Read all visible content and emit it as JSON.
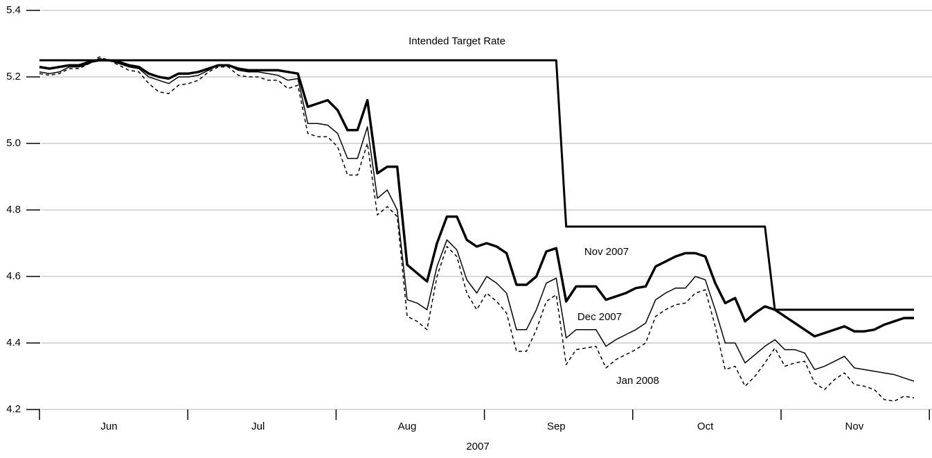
{
  "chart_data": {
    "type": "line",
    "x_label": "2007",
    "categories": [
      null,
      null,
      null,
      null,
      null,
      null,
      null,
      "Jun",
      null,
      null,
      null,
      null,
      null,
      null,
      null,
      null,
      null,
      null,
      null,
      null,
      null,
      null,
      "Jul",
      null,
      null,
      null,
      null,
      null,
      null,
      null,
      null,
      null,
      null,
      null,
      null,
      null,
      null,
      "Aug",
      null,
      null,
      null,
      null,
      null,
      null,
      null,
      null,
      null,
      null,
      null,
      null,
      null,
      null,
      "Sep",
      null,
      null,
      null,
      null,
      null,
      null,
      null,
      null,
      null,
      null,
      null,
      null,
      null,
      null,
      "Oct",
      null,
      null,
      null,
      null,
      null,
      null,
      null,
      null,
      null,
      null,
      null,
      null,
      null,
      null,
      "Nov",
      null,
      null,
      null,
      null,
      null,
      null
    ],
    "ylim": [
      4.2,
      5.4
    ],
    "yticks": [
      {
        "value": 4.2,
        "label": "4.2"
      },
      {
        "value": 4.4,
        "label": "4.4"
      },
      {
        "value": 4.6,
        "label": "4.6"
      },
      {
        "value": 4.8,
        "label": "4.8"
      },
      {
        "value": 5.0,
        "label": "5.0"
      },
      {
        "value": 5.2,
        "label": "5.2"
      },
      {
        "value": 5.4,
        "label": "5.4"
      }
    ],
    "grid": true,
    "series": [
      {
        "name": "Intended Target Rate",
        "color": "#000000",
        "line_width": 3,
        "dashed": false,
        "values": [
          5.25,
          5.25,
          5.25,
          5.25,
          5.25,
          5.25,
          5.25,
          5.25,
          5.25,
          5.25,
          5.25,
          5.25,
          5.25,
          5.25,
          5.25,
          5.25,
          5.25,
          5.25,
          5.25,
          5.25,
          5.25,
          5.25,
          5.25,
          5.25,
          5.25,
          5.25,
          5.25,
          5.25,
          5.25,
          5.25,
          5.25,
          5.25,
          5.25,
          5.25,
          5.25,
          5.25,
          5.25,
          5.25,
          5.25,
          5.25,
          5.25,
          5.25,
          5.25,
          5.25,
          5.25,
          5.25,
          5.25,
          5.25,
          5.25,
          5.25,
          5.25,
          5.25,
          5.25,
          4.75,
          4.75,
          4.75,
          4.75,
          4.75,
          4.75,
          4.75,
          4.75,
          4.75,
          4.75,
          4.75,
          4.75,
          4.75,
          4.75,
          4.75,
          4.75,
          4.75,
          4.75,
          4.75,
          4.75,
          4.75,
          4.5,
          4.5,
          4.5,
          4.5,
          4.5,
          4.5,
          4.5,
          4.5,
          4.5,
          4.5,
          4.5,
          4.5,
          4.5,
          4.5,
          4.5
        ]
      },
      {
        "name": "Nov 2007",
        "color": "#000000",
        "line_width": 3.5,
        "dashed": false,
        "values": [
          5.23,
          5.225,
          5.23,
          5.235,
          5.235,
          5.245,
          5.25,
          5.25,
          5.245,
          5.235,
          5.23,
          5.21,
          5.2,
          5.195,
          5.21,
          5.21,
          5.215,
          5.225,
          5.235,
          5.235,
          5.225,
          5.22,
          5.22,
          5.22,
          5.22,
          5.215,
          5.21,
          5.11,
          5.12,
          5.13,
          5.1,
          5.04,
          5.04,
          5.13,
          4.91,
          4.93,
          4.93,
          4.635,
          4.61,
          4.585,
          4.7,
          4.78,
          4.78,
          4.71,
          4.69,
          4.7,
          4.69,
          4.67,
          4.575,
          4.575,
          4.6,
          4.675,
          4.685,
          4.525,
          4.57,
          4.57,
          4.57,
          4.53,
          4.54,
          4.55,
          4.565,
          4.57,
          4.63,
          4.645,
          4.66,
          4.67,
          4.67,
          4.66,
          4.58,
          4.52,
          4.535,
          4.465,
          4.49,
          4.51,
          4.5,
          4.48,
          4.46,
          4.44,
          4.42,
          4.43,
          4.44,
          4.45,
          4.435,
          4.435,
          4.44,
          4.455,
          4.465,
          4.475,
          4.475
        ]
      },
      {
        "name": "Dec 2007",
        "color": "#000000",
        "line_width": 1.5,
        "dashed": false,
        "values": [
          5.215,
          5.21,
          5.215,
          5.23,
          5.23,
          5.24,
          5.255,
          5.25,
          5.24,
          5.23,
          5.225,
          5.2,
          5.19,
          5.18,
          5.2,
          5.2,
          5.205,
          5.22,
          5.235,
          5.235,
          5.22,
          5.215,
          5.215,
          5.21,
          5.205,
          5.19,
          5.195,
          5.06,
          5.06,
          5.055,
          5.03,
          4.955,
          4.955,
          5.05,
          4.835,
          4.86,
          4.8,
          4.53,
          4.52,
          4.5,
          4.63,
          4.71,
          4.68,
          4.59,
          4.55,
          4.6,
          4.58,
          4.55,
          4.44,
          4.44,
          4.5,
          4.58,
          4.595,
          4.415,
          4.44,
          4.44,
          4.44,
          4.39,
          4.41,
          4.425,
          4.44,
          4.46,
          4.53,
          4.55,
          4.565,
          4.565,
          4.6,
          4.59,
          4.5,
          4.4,
          4.4,
          4.34,
          4.365,
          4.39,
          4.41,
          4.38,
          4.38,
          4.37,
          4.32,
          4.33,
          4.345,
          4.36,
          4.325,
          4.32,
          4.315,
          4.31,
          4.305,
          4.295,
          4.285
        ]
      },
      {
        "name": "Jan 2008",
        "color": "#000000",
        "line_width": 1.5,
        "dashed": true,
        "values": [
          5.21,
          5.205,
          5.21,
          5.225,
          5.225,
          5.24,
          5.26,
          5.25,
          5.235,
          5.22,
          5.215,
          5.18,
          5.155,
          5.15,
          5.175,
          5.18,
          5.19,
          5.215,
          5.23,
          5.23,
          5.205,
          5.2,
          5.2,
          5.19,
          5.19,
          5.165,
          5.175,
          5.03,
          5.02,
          5.02,
          4.99,
          4.905,
          4.905,
          5.0,
          4.785,
          4.81,
          4.78,
          4.48,
          4.465,
          4.44,
          4.6,
          4.69,
          4.66,
          4.55,
          4.5,
          4.55,
          4.525,
          4.49,
          4.375,
          4.375,
          4.44,
          4.525,
          4.545,
          4.335,
          4.38,
          4.385,
          4.39,
          4.325,
          4.35,
          4.365,
          4.38,
          4.4,
          4.48,
          4.5,
          4.515,
          4.52,
          4.55,
          4.56,
          4.45,
          4.32,
          4.33,
          4.27,
          4.3,
          4.34,
          4.385,
          4.33,
          4.34,
          4.345,
          4.28,
          4.26,
          4.29,
          4.31,
          4.275,
          4.27,
          4.26,
          4.23,
          4.225,
          4.24,
          4.235
        ]
      }
    ]
  }
}
